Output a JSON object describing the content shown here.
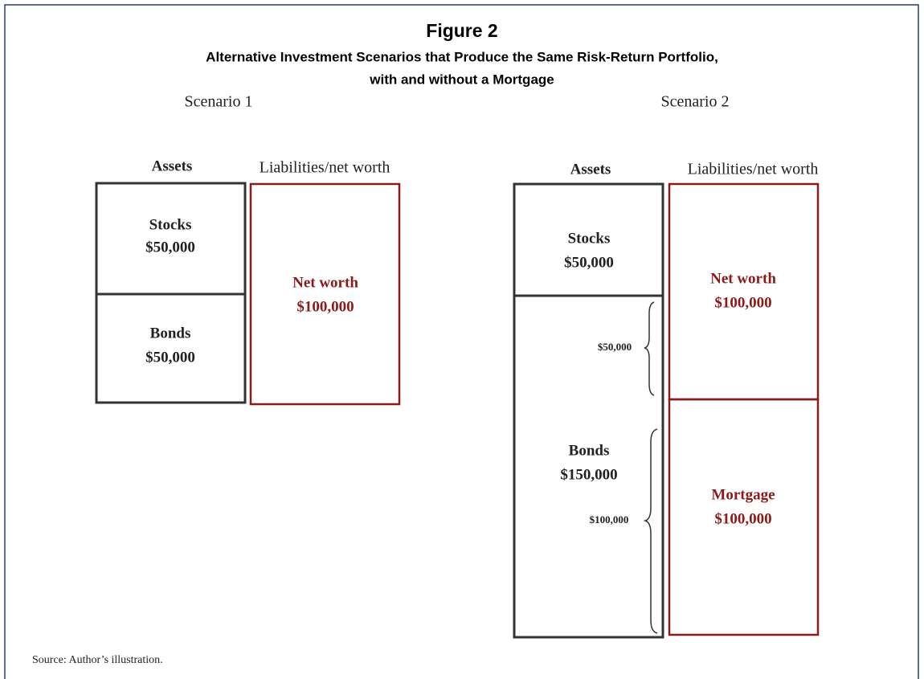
{
  "header": {
    "title": "Figure 2",
    "subtitle": [
      "Alternative Investment Scenarios that Produce the Same Risk-Return Portfolio,",
      "with and without a Mortgage"
    ]
  },
  "scenarios": [
    {
      "label": "Scenario 1",
      "assets_header": "Assets",
      "liabilities_header": "Liabilities/net worth",
      "assets": [
        {
          "name": "Stocks",
          "amount": "$50,000"
        },
        {
          "name": "Bonds",
          "amount": "$50,000"
        }
      ],
      "liabilities": [
        {
          "name": "Net worth",
          "amount": "$100,000"
        }
      ]
    },
    {
      "label": "Scenario 2",
      "assets_header": "Assets",
      "liabilities_header": "Liabilities/net worth",
      "assets": [
        {
          "name": "Stocks",
          "amount": "$50,000"
        },
        {
          "name": "Bonds",
          "amount": "$150,000"
        }
      ],
      "liabilities": [
        {
          "name": "Net worth",
          "amount": "$100,000"
        },
        {
          "name": "Mortgage",
          "amount": "$100,000"
        }
      ],
      "braces": [
        "$50,000",
        "$100,000"
      ]
    }
  ],
  "source": "Source: Author’s illustration."
}
